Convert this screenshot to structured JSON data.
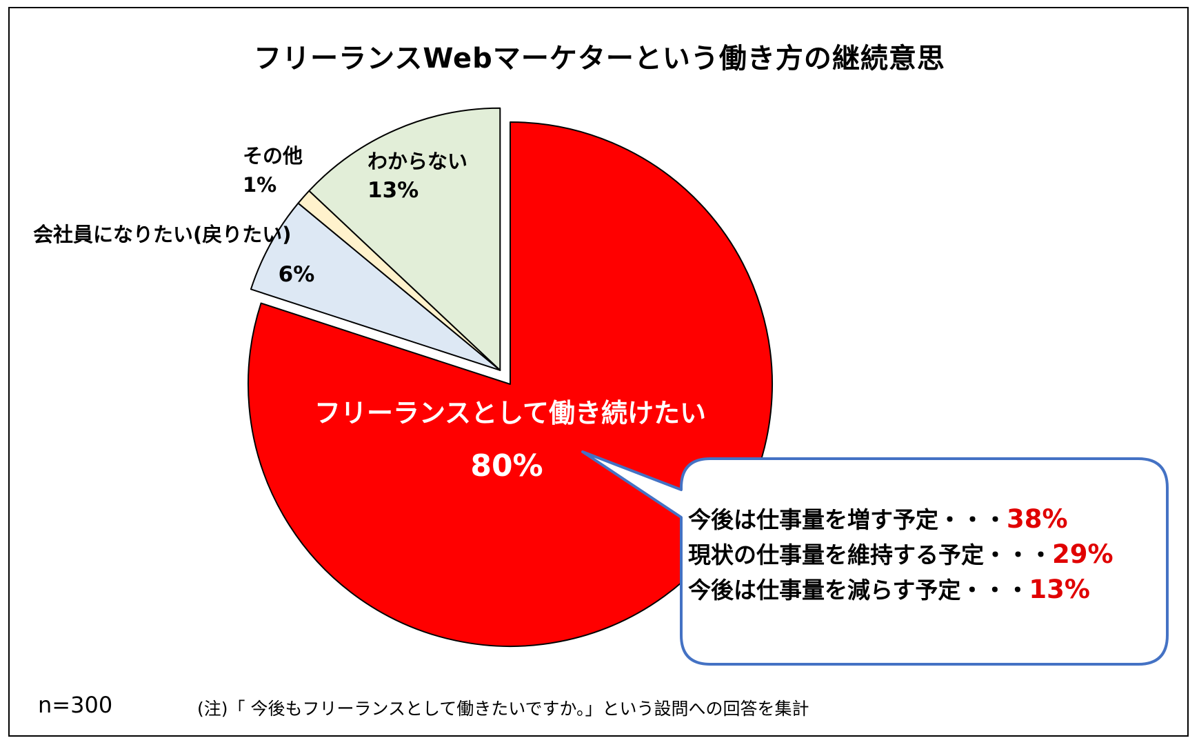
{
  "chart_data": {
    "type": "pie",
    "title": "フリーランスWebマーケターという働き方の継続意思",
    "slices": [
      {
        "name": "フリーランスとして働き続けたい",
        "value": 80,
        "value_label": "80%",
        "color": "#ff0000",
        "exploded": false
      },
      {
        "name": "会社員になりたい(戻りたい)",
        "value": 6,
        "value_label": "6%",
        "color": "#dde8f4",
        "exploded": true
      },
      {
        "name": "その他",
        "value": 1,
        "value_label": "1%",
        "color": "#fff2cc",
        "exploded": true
      },
      {
        "name": "わからない",
        "value": 13,
        "value_label": "13%",
        "color": "#e2eed8",
        "exploded": true
      }
    ],
    "callout": {
      "rows": [
        {
          "text": "今後は仕事量を増す予定・・・",
          "value": "38%"
        },
        {
          "text": "現状の仕事量を維持する予定・・・",
          "value": "29%"
        },
        {
          "text": "今後は仕事量を減らす予定・・・",
          "value": "13%"
        }
      ],
      "value_color": "#e00000",
      "border_color": "#4472c4"
    },
    "n_label": "n=300",
    "note": "(注)「 今後もフリーランスとして働きたいですか。」という設問への回答を集計"
  }
}
